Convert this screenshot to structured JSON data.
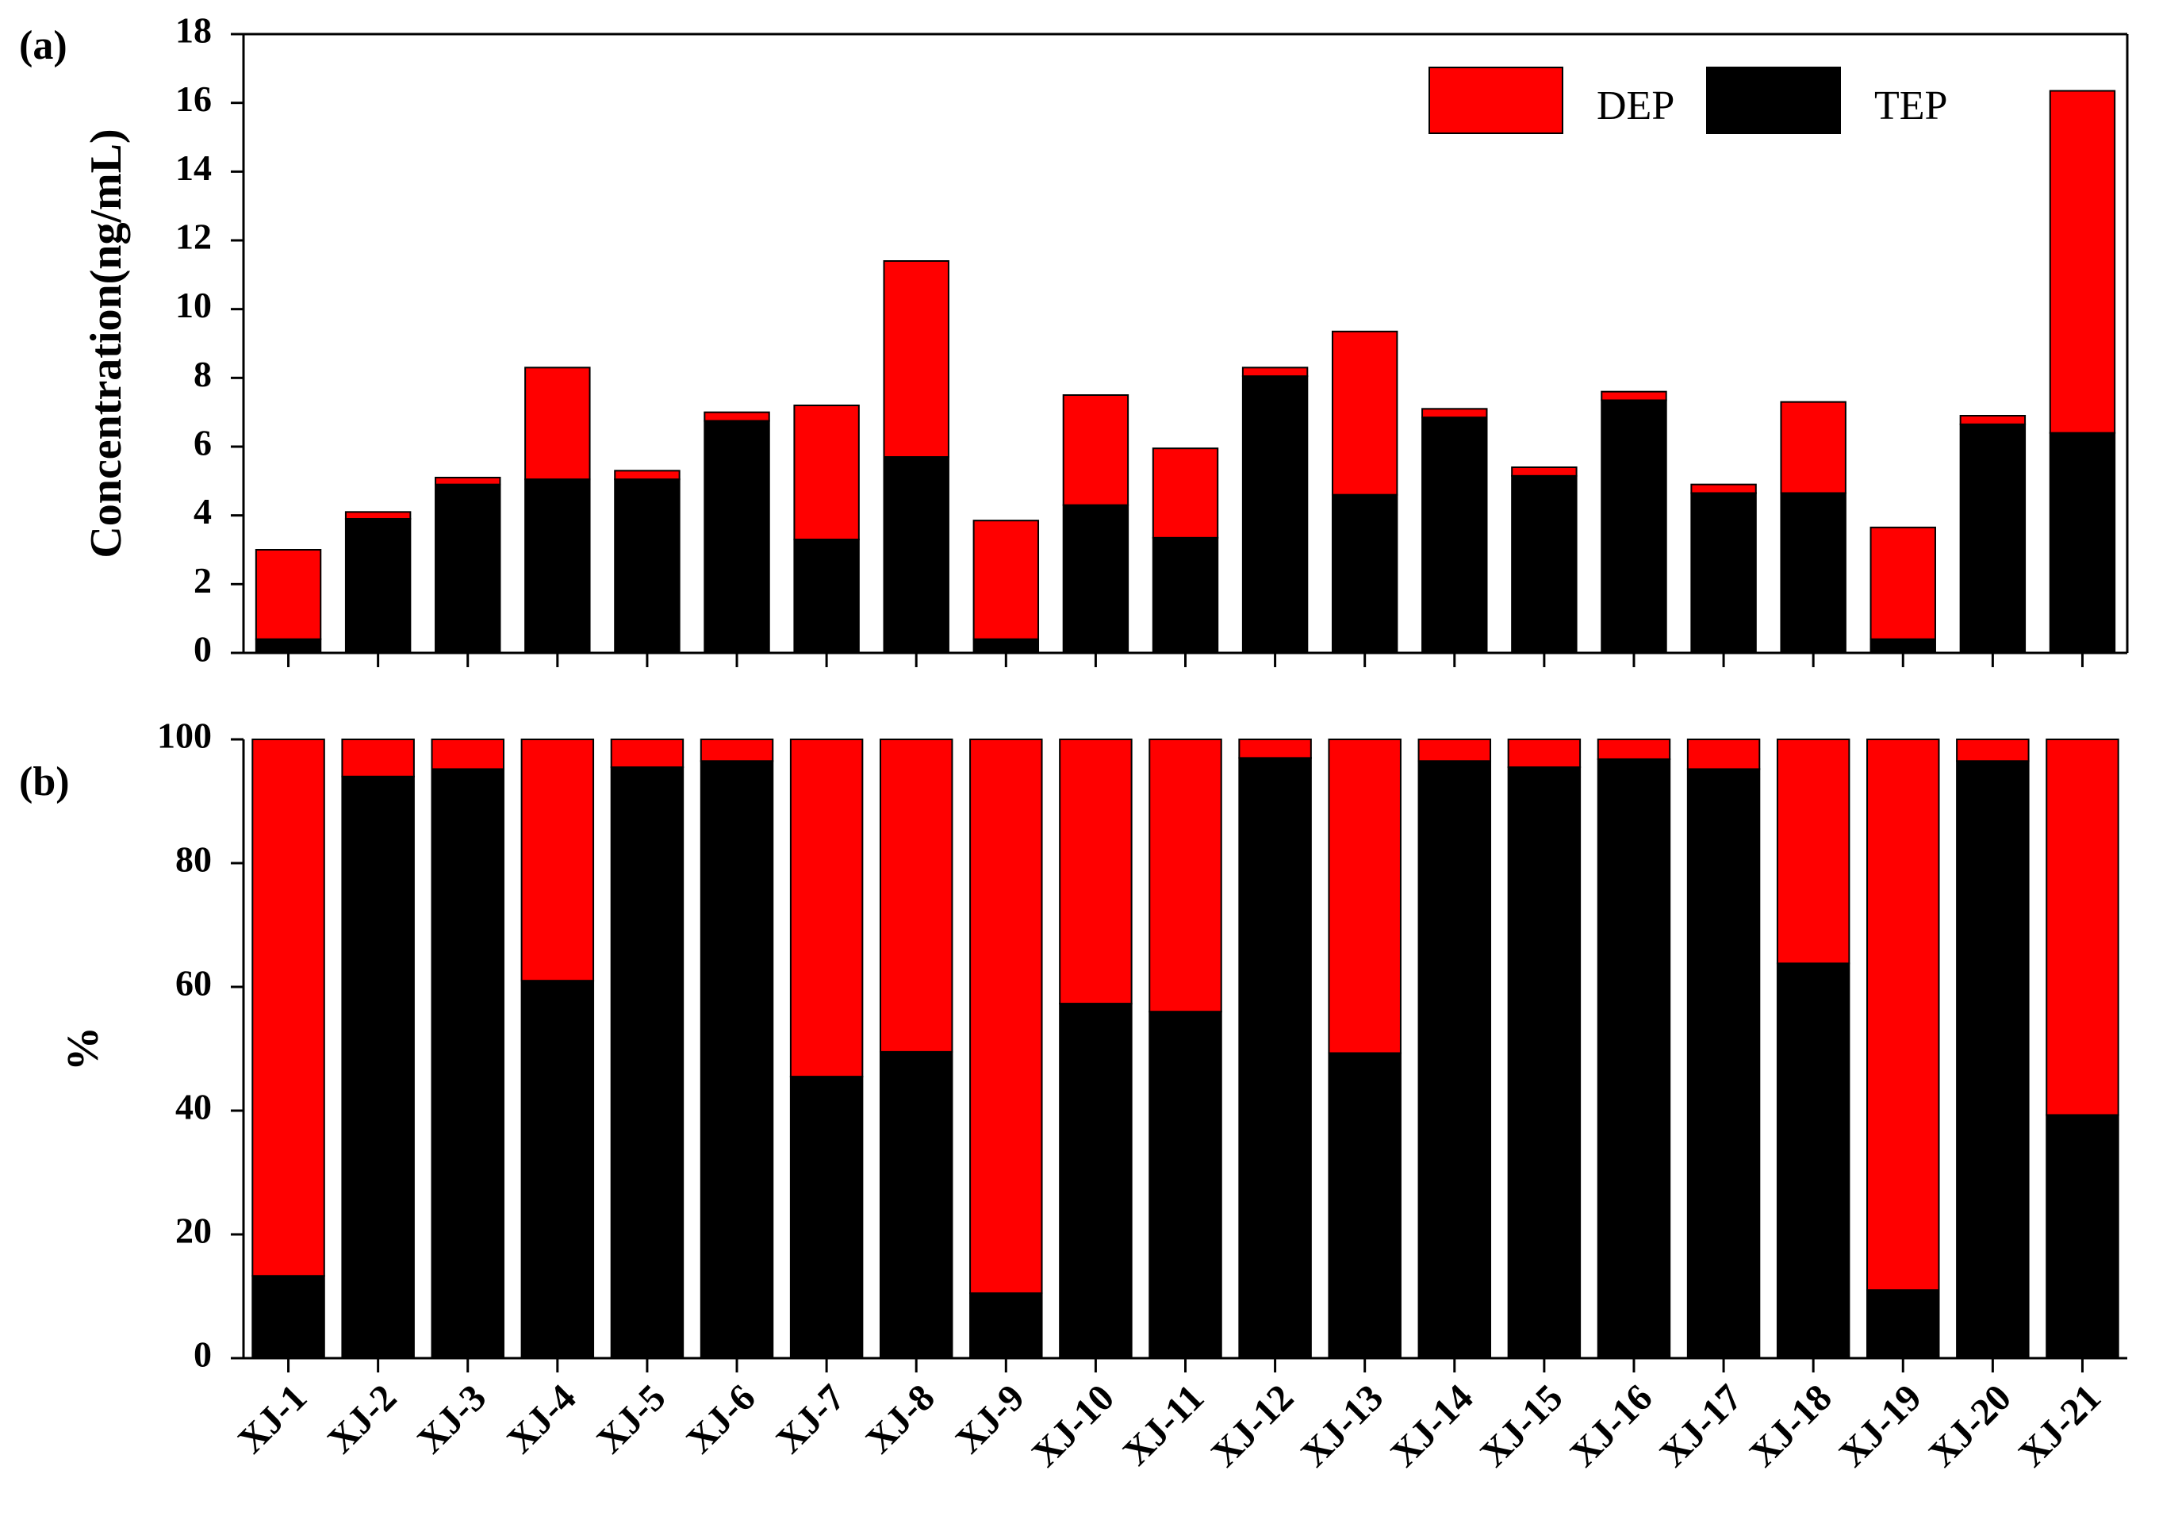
{
  "chart_data": [
    {
      "type": "bar",
      "stacked": true,
      "panel_label": "(a)",
      "ylabel": "Concentration(ng/mL)",
      "ylim": [
        0,
        18
      ],
      "yticks": [
        0,
        2,
        4,
        6,
        8,
        10,
        12,
        14,
        16,
        18
      ],
      "legend": "upper right",
      "box": true,
      "series": [
        {
          "name": "TEP",
          "color": "#000000",
          "values": [
            0.4,
            3.9,
            4.9,
            5.05,
            5.05,
            6.75,
            3.3,
            5.7,
            0.4,
            4.3,
            3.35,
            8.05,
            4.6,
            6.85,
            5.15,
            7.35,
            4.65,
            4.65,
            0.4,
            6.65,
            6.4
          ]
        },
        {
          "name": "DEP",
          "color": "#ff0000",
          "values": [
            2.6,
            0.2,
            0.2,
            3.25,
            0.25,
            0.25,
            3.9,
            5.7,
            3.45,
            3.2,
            2.6,
            0.25,
            4.75,
            0.25,
            0.25,
            0.25,
            0.25,
            2.65,
            3.25,
            0.25,
            9.95
          ]
        }
      ]
    },
    {
      "type": "bar",
      "stacked": true,
      "panel_label": "(b)",
      "ylabel": "%",
      "categories": [
        "XJ-1",
        "XJ-2",
        "XJ-3",
        "XJ-4",
        "XJ-5",
        "XJ-6",
        "XJ-7",
        "XJ-8",
        "XJ-9",
        "XJ-10",
        "XJ-11",
        "XJ-12",
        "XJ-13",
        "XJ-14",
        "XJ-15",
        "XJ-16",
        "XJ-17",
        "XJ-18",
        "XJ-19",
        "XJ-20",
        "XJ-21"
      ],
      "ylim": [
        0,
        100
      ],
      "yticks": [
        0,
        20,
        40,
        60,
        80,
        100
      ],
      "box": false,
      "series": [
        {
          "name": "TEP",
          "color": "#000000",
          "values": [
            13.3,
            94,
            95.2,
            61,
            95.5,
            96.5,
            45.5,
            49.5,
            10.5,
            57.3,
            56,
            97,
            49.3,
            96.5,
            95.5,
            96.8,
            95.2,
            63.8,
            11,
            96.5,
            39.3
          ]
        },
        {
          "name": "DEP",
          "color": "#ff0000",
          "values": [
            86.7,
            6,
            4.8,
            39,
            4.5,
            3.5,
            54.5,
            50.5,
            89.5,
            42.7,
            44,
            3,
            50.7,
            3.5,
            4.5,
            3.2,
            4.8,
            36.2,
            89,
            3.5,
            60.7
          ]
        }
      ]
    }
  ]
}
